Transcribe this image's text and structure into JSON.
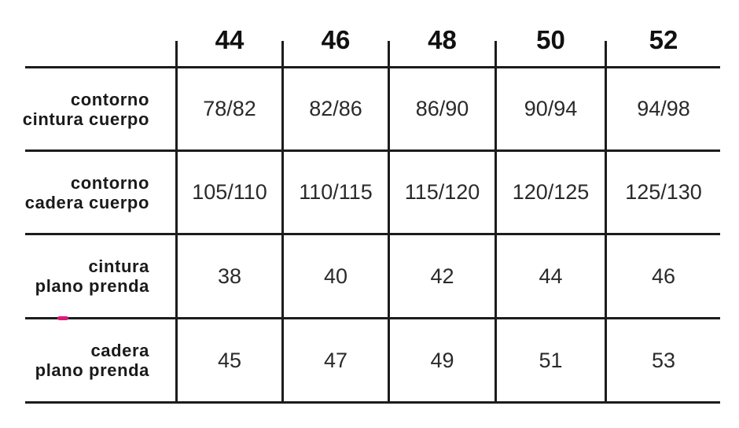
{
  "sizes": [
    "44",
    "46",
    "48",
    "50",
    "52"
  ],
  "rows": [
    {
      "label": [
        "contorno",
        "cintura cuerpo"
      ],
      "values": [
        "78/82",
        "82/86",
        "86/90",
        "90/94",
        "94/98"
      ]
    },
    {
      "label": [
        "contorno",
        "cadera cuerpo"
      ],
      "values": [
        "105/110",
        "110/115",
        "115/120",
        "120/125",
        "125/130"
      ]
    },
    {
      "label": [
        "cintura",
        "plano prenda"
      ],
      "values": [
        "38",
        "40",
        "42",
        "44",
        "46"
      ]
    },
    {
      "label": [
        "cadera",
        "plano prenda"
      ],
      "values": [
        "45",
        "47",
        "49",
        "51",
        "53"
      ]
    }
  ],
  "colors": {
    "line": "#1c1c1c",
    "text": "#1a1a1a",
    "mark": "#d81b7a"
  }
}
